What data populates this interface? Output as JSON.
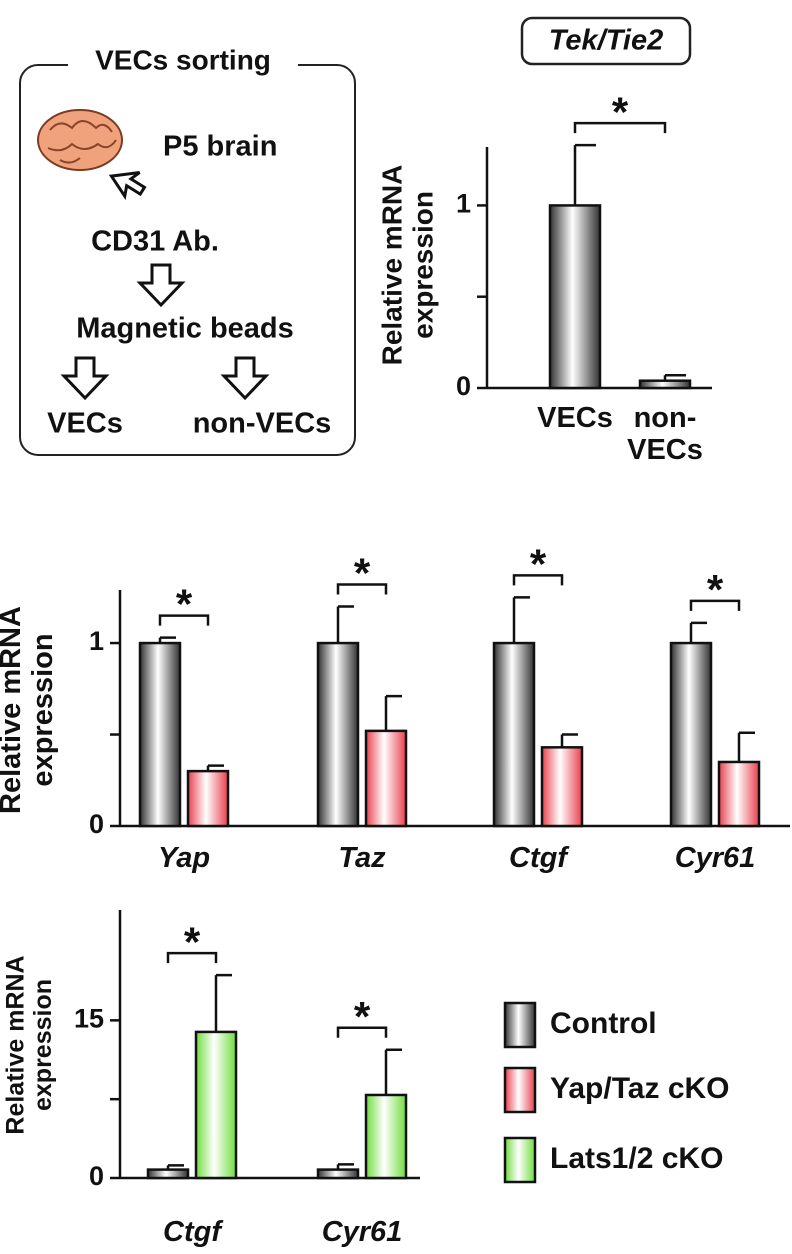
{
  "diagram": {
    "title": "VECs sorting",
    "steps": [
      "P5 brain",
      "CD31 Ab.",
      "Magnetic beads"
    ],
    "outputs": [
      "VECs",
      "non-VECs"
    ]
  },
  "chart_data": [
    {
      "type": "bar",
      "title": "Tek/Tie2",
      "ylabel": [
        "Relative mRNA",
        "expression"
      ],
      "categories": [
        "VECs",
        "non-VECs"
      ],
      "series": [
        {
          "color": "#333333",
          "values": [
            1.0,
            0.04
          ],
          "errors": [
            0.33,
            0.03
          ]
        }
      ],
      "ylim": [
        0,
        1.32
      ],
      "yticks": [
        0,
        {
          "value": 0.5,
          "label": null
        },
        1
      ],
      "significance": [
        "*"
      ]
    },
    {
      "type": "bar",
      "ylabel": [
        "Relative mRNA",
        "expression"
      ],
      "categories": [
        "Yap",
        "Taz",
        "Ctgf",
        "Cyr61"
      ],
      "series": [
        {
          "name": "Control",
          "color": "#333333",
          "values": [
            1.0,
            1.0,
            1.0,
            1.0
          ],
          "errors": [
            0.03,
            0.2,
            0.25,
            0.11
          ]
        },
        {
          "name": "Yap/Taz cKO",
          "color": "#e8404e",
          "values": [
            0.3,
            0.52,
            0.43,
            0.35
          ],
          "errors": [
            0.03,
            0.19,
            0.07,
            0.16
          ]
        }
      ],
      "ylim": [
        0,
        1.29
      ],
      "yticks": [
        0,
        {
          "value": 0.5,
          "label": null
        },
        1
      ],
      "significance": [
        "*",
        "*",
        "*",
        "*"
      ]
    },
    {
      "type": "bar",
      "ylabel": [
        "Relative mRNA",
        "expression"
      ],
      "categories": [
        "Ctgf",
        "Cyr61"
      ],
      "series": [
        {
          "name": "Control",
          "color": "#333333",
          "values": [
            0.8,
            0.8
          ],
          "errors": [
            0.4,
            0.5
          ]
        },
        {
          "name": "Lats1/2 cKO",
          "color": "#6fdc3c",
          "values": [
            13.9,
            7.9
          ],
          "errors": [
            5.4,
            4.3
          ]
        }
      ],
      "ylim": [
        0,
        25.5
      ],
      "yticks": [
        0,
        {
          "value": 7.5,
          "label": null
        },
        15
      ],
      "significance": [
        "*",
        "*"
      ]
    }
  ]
}
